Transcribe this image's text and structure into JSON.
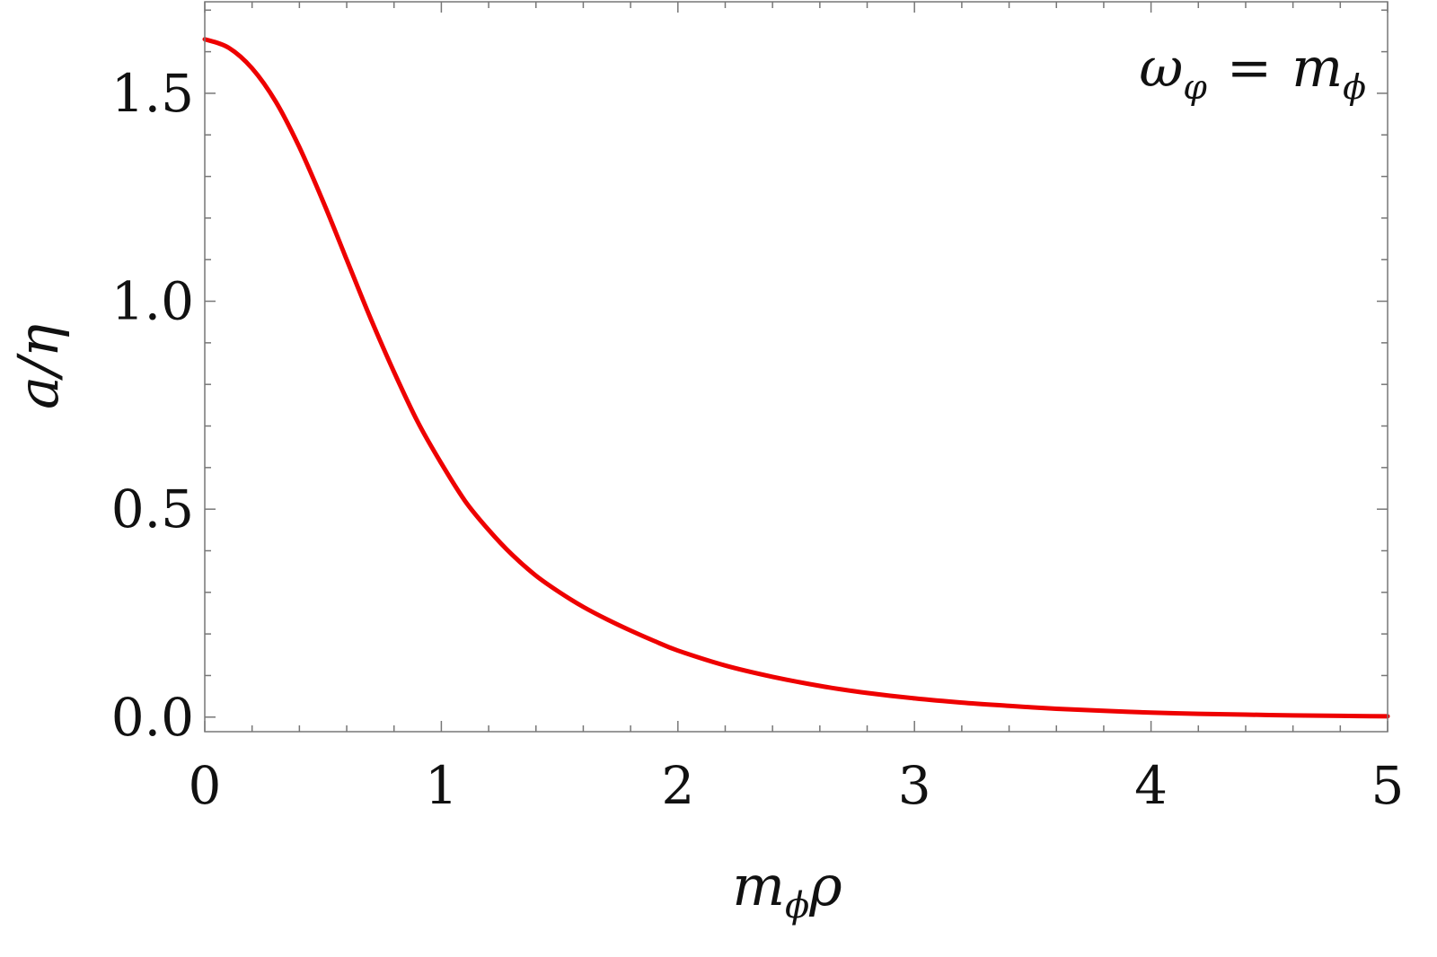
{
  "chart_data": {
    "type": "line",
    "title": "",
    "xlabel": "mϕρ",
    "xlabel_parts": {
      "base": "m",
      "sub": "ϕ",
      "tail": "ρ"
    },
    "ylabel": "a/η",
    "annotation": "ωφ = mϕ",
    "annotation_parts": {
      "lhs": "ω",
      "lhs_sub": "φ",
      "op": "=",
      "rhs": "m",
      "rhs_sub": "ϕ"
    },
    "annotation_position": "top-right",
    "xlim": [
      0,
      5
    ],
    "ylim": [
      -0.035,
      1.72
    ],
    "x_ticks": [
      0,
      1,
      2,
      3,
      4,
      5
    ],
    "x_tick_labels": [
      "0",
      "1",
      "2",
      "3",
      "4",
      "5"
    ],
    "x_minor_step": 0.2,
    "y_ticks": [
      0.0,
      0.5,
      1.0,
      1.5
    ],
    "y_tick_labels": [
      "0.0",
      "0.5",
      "1.0",
      "1.5"
    ],
    "y_minor_step": 0.1,
    "grid": false,
    "series": [
      {
        "color": "#ee0000",
        "x": [
          0,
          0.1,
          0.2,
          0.3,
          0.4,
          0.5,
          0.6,
          0.7,
          0.8,
          0.9,
          1.0,
          1.1,
          1.2,
          1.3,
          1.4,
          1.5,
          1.6,
          1.7,
          1.8,
          1.9,
          2.0,
          2.2,
          2.4,
          2.6,
          2.8,
          3.0,
          3.2,
          3.4,
          3.6,
          3.8,
          4.0,
          4.2,
          4.4,
          4.6,
          4.8,
          5.0
        ],
        "y": [
          1.63,
          1.61,
          1.56,
          1.48,
          1.37,
          1.24,
          1.1,
          0.96,
          0.83,
          0.71,
          0.61,
          0.52,
          0.45,
          0.39,
          0.34,
          0.3,
          0.265,
          0.235,
          0.208,
          0.183,
          0.16,
          0.124,
          0.097,
          0.075,
          0.058,
          0.045,
          0.035,
          0.027,
          0.02,
          0.015,
          0.011,
          0.008,
          0.006,
          0.004,
          0.003,
          0.002
        ]
      }
    ]
  }
}
